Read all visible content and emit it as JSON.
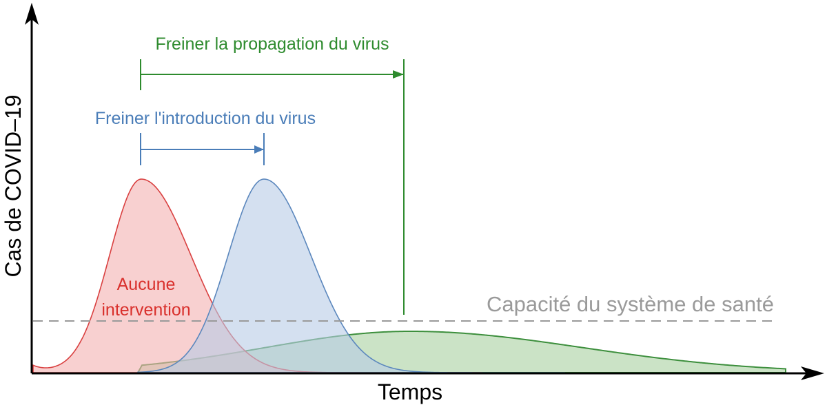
{
  "axes": {
    "x_label": "Temps",
    "y_label": "Cas de COVID–19"
  },
  "curves": [
    {
      "id": "no-intervention",
      "label_lines": [
        "Aucune",
        "intervention"
      ],
      "color": "#d94040",
      "fill": "#f4b0b0"
    },
    {
      "id": "slow-introduction",
      "label_lines": [],
      "color": "#5b87bd",
      "fill": "#b7cbe6"
    },
    {
      "id": "slow-propagation",
      "label_lines": [],
      "color": "#3d8f3d",
      "fill": "#a9d1a0"
    }
  ],
  "annotations": {
    "introduction": {
      "text": "Freiner l'introduction du virus",
      "color": "#4a7db8"
    },
    "propagation": {
      "text": "Freiner la propagation du virus",
      "color": "#2e8b2e"
    },
    "capacity": {
      "text": "Capacité du système de santé",
      "color": "#9a9a9a"
    }
  }
}
